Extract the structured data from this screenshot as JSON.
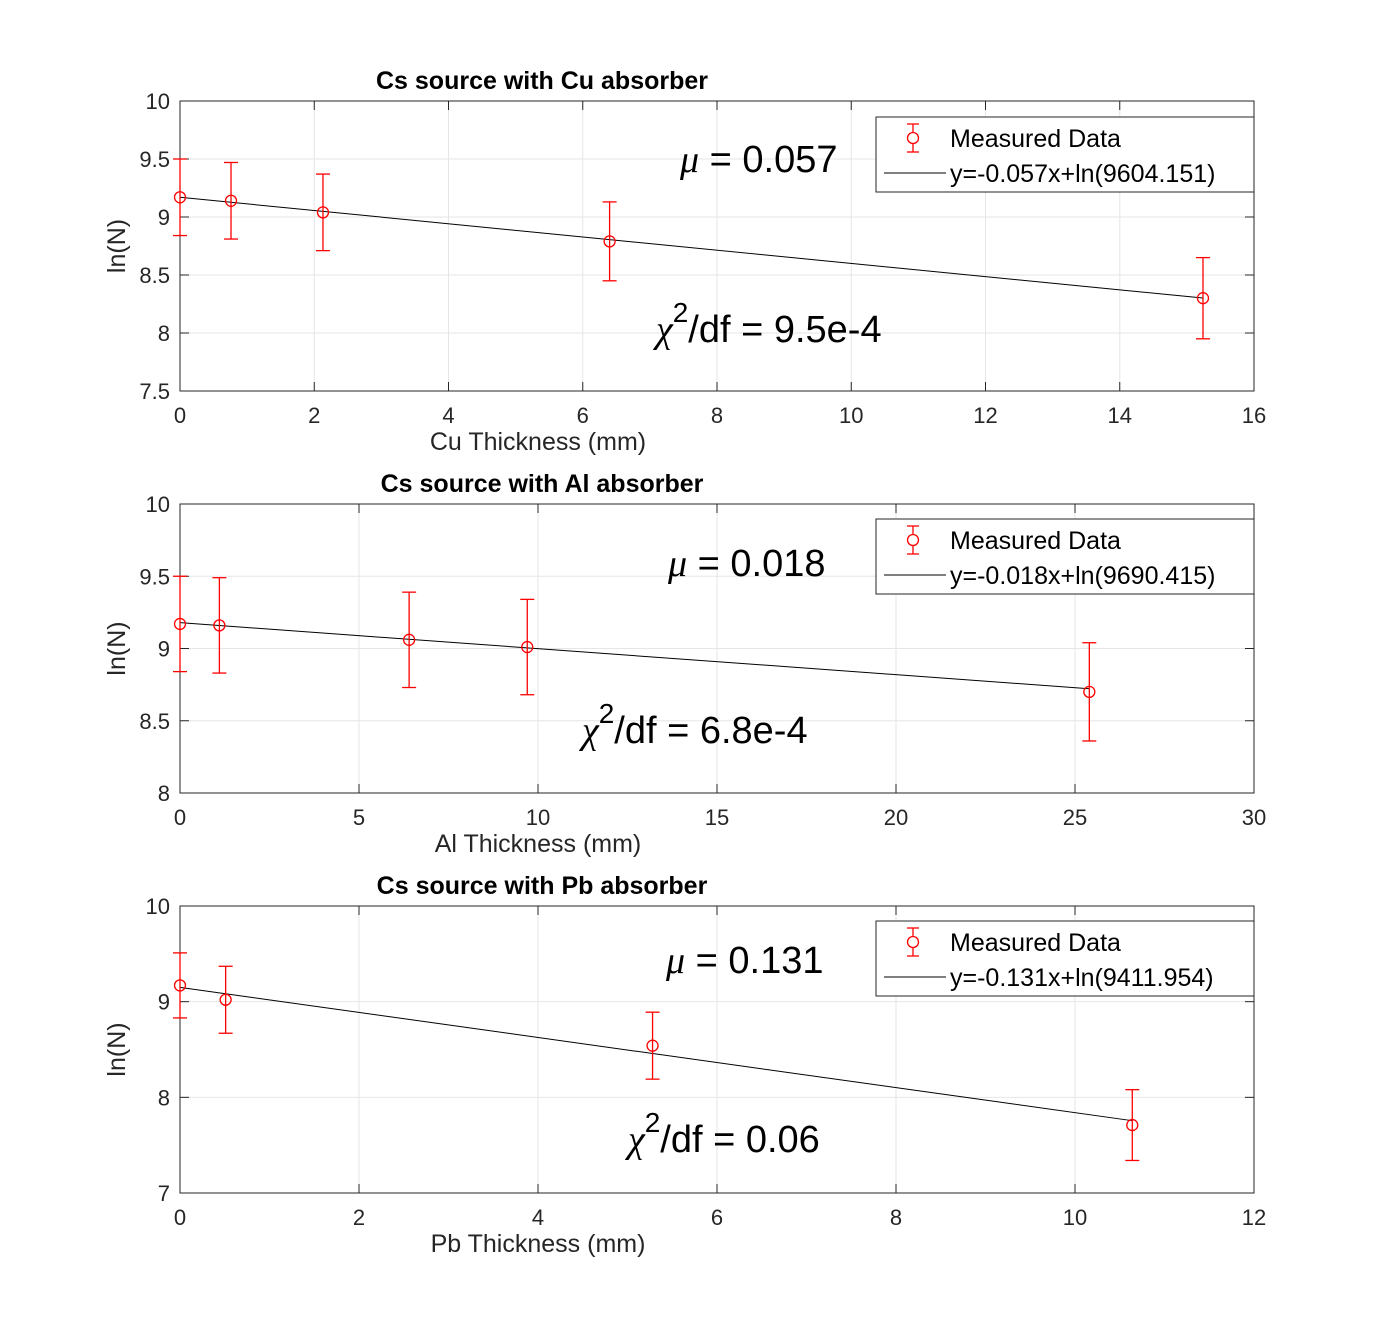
{
  "chart_data": [
    {
      "type": "scatter",
      "title": "Cs source with Cu absorber",
      "xlabel": "Cu Thickness (mm)",
      "ylabel": "ln(N)",
      "xlim": [
        0,
        16
      ],
      "ylim": [
        7.5,
        10
      ],
      "xticks": [
        0,
        2,
        4,
        6,
        8,
        10,
        12,
        14,
        16
      ],
      "yticks": [
        7.5,
        8,
        8.5,
        9,
        9.5,
        10
      ],
      "xtick_labels": [
        "0",
        "2",
        "4",
        "6",
        "8",
        "10",
        "12",
        "14",
        "16"
      ],
      "ytick_labels": [
        "7.5",
        "8",
        "8.5",
        "9",
        "9.5",
        "10"
      ],
      "grid": true,
      "legend_position": "top-right",
      "series": [
        {
          "name": "Measured Data",
          "style": "errorbar-circle",
          "color": "#ff0000",
          "x": [
            0,
            0.76,
            2.13,
            6.4,
            15.24
          ],
          "y": [
            9.17,
            9.14,
            9.04,
            8.79,
            8.3
          ],
          "err": [
            0.33,
            0.33,
            0.33,
            0.34,
            0.35
          ]
        },
        {
          "name": "y=-0.057x+ln(9604.151)",
          "style": "line",
          "color": "#000000",
          "slope": -0.057,
          "intercept_ln_of": 9604.151,
          "x_range": [
            0,
            15.24
          ]
        }
      ],
      "annotations": {
        "mu_symbol": "μ",
        "mu_text": " = 0.057",
        "chi_symbol": "χ",
        "chi_sup": "2",
        "chi_text": "/df = 9.5e-4"
      }
    },
    {
      "type": "scatter",
      "title": "Cs source with Al absorber",
      "xlabel": "Al Thickness (mm)",
      "ylabel": "ln(N)",
      "xlim": [
        0,
        30
      ],
      "ylim": [
        8,
        10
      ],
      "xticks": [
        0,
        5,
        10,
        15,
        20,
        25,
        30
      ],
      "yticks": [
        8,
        8.5,
        9,
        9.5,
        10
      ],
      "xtick_labels": [
        "0",
        "5",
        "10",
        "15",
        "20",
        "25",
        "30"
      ],
      "ytick_labels": [
        "8",
        "8.5",
        "9",
        "9.5",
        "10"
      ],
      "grid": true,
      "legend_position": "top-right",
      "series": [
        {
          "name": "Measured Data",
          "style": "errorbar-circle",
          "color": "#ff0000",
          "x": [
            0,
            1.1,
            6.4,
            9.7,
            25.4
          ],
          "y": [
            9.17,
            9.16,
            9.06,
            9.01,
            8.7
          ],
          "err": [
            0.33,
            0.33,
            0.33,
            0.33,
            0.34
          ]
        },
        {
          "name": "y=-0.018x+ln(9690.415)",
          "style": "line",
          "color": "#000000",
          "slope": -0.018,
          "intercept_ln_of": 9690.415,
          "x_range": [
            0,
            25.4
          ]
        }
      ],
      "annotations": {
        "mu_symbol": "μ",
        "mu_text": " = 0.018",
        "chi_symbol": "χ",
        "chi_sup": "2",
        "chi_text": "/df = 6.8e-4"
      }
    },
    {
      "type": "scatter",
      "title": "Cs source with Pb absorber",
      "xlabel": "Pb Thickness (mm)",
      "ylabel": "ln(N)",
      "xlim": [
        0,
        12
      ],
      "ylim": [
        7,
        10
      ],
      "xticks": [
        0,
        2,
        4,
        6,
        8,
        10,
        12
      ],
      "yticks": [
        7,
        8,
        9,
        10
      ],
      "xtick_labels": [
        "0",
        "2",
        "4",
        "6",
        "8",
        "10",
        "12"
      ],
      "ytick_labels": [
        "7",
        "8",
        "9",
        "10"
      ],
      "grid": true,
      "legend_position": "top-right",
      "series": [
        {
          "name": "Measured Data",
          "style": "errorbar-circle",
          "color": "#ff0000",
          "x": [
            0,
            0.51,
            5.28,
            10.64
          ],
          "y": [
            9.17,
            9.02,
            8.54,
            7.71
          ],
          "err": [
            0.34,
            0.35,
            0.35,
            0.37
          ]
        },
        {
          "name": "y=-0.131x+ln(9411.954)",
          "style": "line",
          "color": "#000000",
          "slope": -0.131,
          "intercept_ln_of": 9411.954,
          "x_range": [
            0,
            10.64
          ]
        }
      ],
      "annotations": {
        "mu_symbol": "μ",
        "mu_text": " = 0.131",
        "chi_symbol": "χ",
        "chi_sup": "2",
        "chi_text": "/df = 0.06"
      }
    }
  ]
}
